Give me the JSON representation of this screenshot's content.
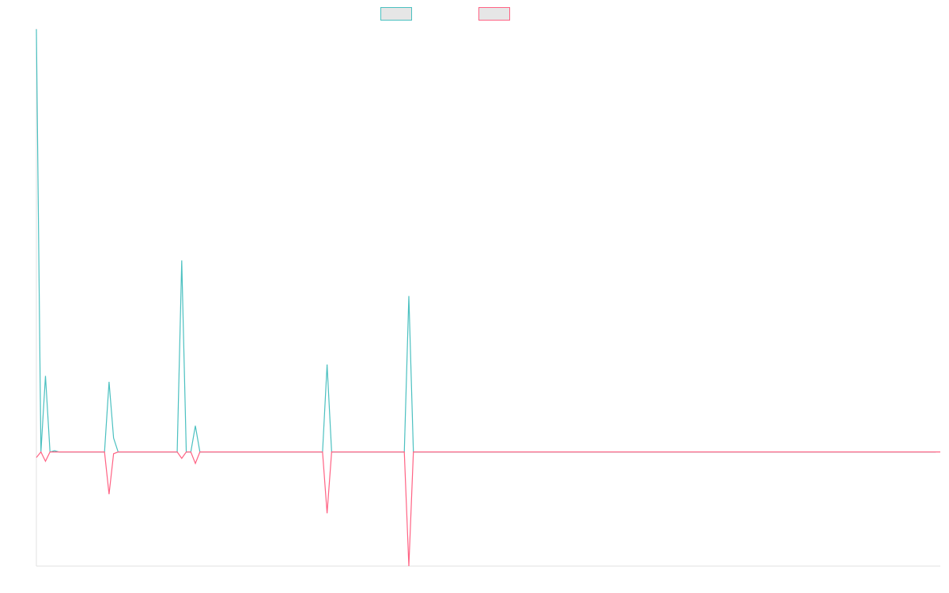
{
  "chart_data": {
    "type": "line",
    "x_count": 200,
    "ylim": [
      -0.27,
      1.0
    ],
    "grid": false,
    "legend": "top-center",
    "series": [
      {
        "color": "#4bc0c0",
        "legend_fill": "#e6e6e6",
        "values": [
          1.0,
          0.0,
          0.18,
          0.0,
          0.003,
          0.0,
          0,
          0,
          0,
          0,
          0,
          0,
          0,
          0,
          0,
          0.0,
          0.166,
          0.033,
          0.0,
          0,
          0,
          0,
          0,
          0,
          0,
          0,
          0,
          0,
          0,
          0,
          0,
          0.0,
          0.453,
          0.0,
          0.0,
          0.062,
          0.0,
          0,
          0,
          0,
          0,
          0,
          0,
          0,
          0,
          0,
          0,
          0,
          0,
          0,
          0,
          0,
          0,
          0,
          0,
          0,
          0,
          0,
          0,
          0,
          0,
          0,
          0,
          0.0,
          0.207,
          0.0,
          0,
          0,
          0,
          0,
          0,
          0,
          0,
          0,
          0,
          0,
          0,
          0,
          0,
          0,
          0,
          0.0,
          0.369,
          0.0,
          0,
          0,
          0,
          0,
          0,
          0,
          0,
          0,
          0,
          0,
          0,
          0,
          0,
          0,
          0,
          0,
          0,
          0,
          0,
          0,
          0,
          0,
          0,
          0,
          0,
          0,
          0,
          0,
          0,
          0,
          0,
          0,
          0,
          0,
          0,
          0,
          0,
          0,
          0,
          0,
          0,
          0,
          0,
          0,
          0,
          0,
          0,
          0,
          0,
          0,
          0,
          0,
          0,
          0,
          0,
          0,
          0,
          0,
          0,
          0,
          0,
          0,
          0,
          0,
          0,
          0,
          0,
          0,
          0,
          0,
          0,
          0,
          0,
          0,
          0,
          0,
          0,
          0,
          0,
          0,
          0,
          0,
          0,
          0,
          0,
          0,
          0,
          0,
          0,
          0,
          0,
          0,
          0,
          0,
          0,
          0,
          0,
          0,
          0,
          0,
          0,
          0,
          0,
          0,
          0,
          0,
          0,
          0,
          0,
          0,
          0,
          0,
          0,
          0,
          0
        ]
      },
      {
        "color": "#ff6384",
        "legend_fill": "#e6e6e6",
        "values": [
          -0.013,
          0.0,
          -0.022,
          0.0,
          0.0,
          0.0,
          0,
          0,
          0,
          0,
          0,
          0,
          0,
          0,
          0,
          0.0,
          -0.1,
          -0.004,
          0.0,
          0,
          0,
          0,
          0,
          0,
          0,
          0,
          0,
          0,
          0,
          0,
          0,
          0.0,
          -0.015,
          0.0,
          0.0,
          -0.027,
          0.0,
          0,
          0,
          0,
          0,
          0,
          0,
          0,
          0,
          0,
          0,
          0,
          0,
          0,
          0,
          0,
          0,
          0,
          0,
          0,
          0,
          0,
          0,
          0,
          0,
          0,
          0,
          0.0,
          -0.145,
          0.0,
          0,
          0,
          0,
          0,
          0,
          0,
          0,
          0,
          0,
          0,
          0,
          0,
          0,
          0,
          0,
          0.0,
          -0.27,
          0.0,
          0,
          0,
          0,
          0,
          0,
          0,
          0,
          0,
          0,
          0,
          0,
          0,
          0,
          0,
          0,
          0,
          0,
          0,
          0,
          0,
          0,
          0,
          0,
          0,
          0,
          0,
          0,
          0,
          0,
          0,
          0,
          0,
          0,
          0,
          0,
          0,
          0,
          0,
          0,
          0,
          0,
          0,
          0,
          0,
          0,
          0,
          0,
          0,
          0,
          0,
          0,
          0,
          0,
          0,
          0,
          0,
          0,
          0,
          0,
          0,
          0,
          0,
          0,
          0,
          0,
          0,
          0,
          0,
          0,
          0,
          0,
          0,
          0,
          0,
          0,
          0,
          0,
          0,
          0,
          0,
          0,
          0,
          0,
          0,
          0,
          0,
          0,
          0,
          0,
          0,
          0,
          0,
          0,
          0,
          0,
          0,
          0,
          0,
          0,
          0,
          0,
          0,
          0,
          0,
          0,
          0,
          0,
          0,
          0,
          0,
          0,
          0,
          0,
          0,
          0,
          0,
          0,
          0
        ]
      }
    ]
  }
}
